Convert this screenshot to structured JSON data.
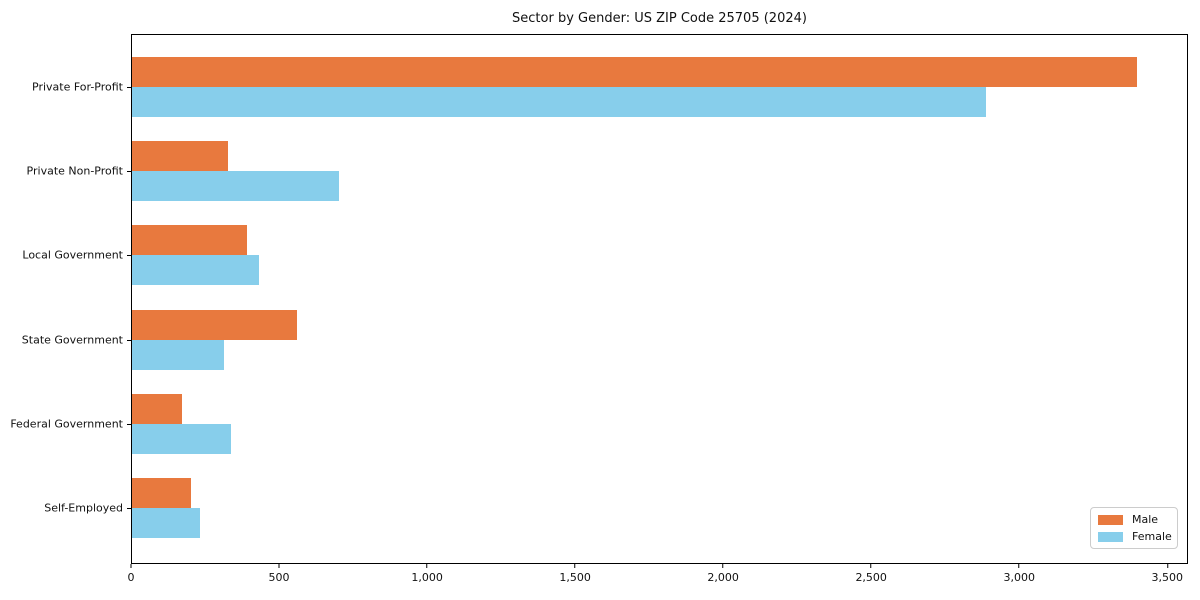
{
  "chart_data": {
    "type": "bar",
    "orientation": "horizontal",
    "title": "Sector by Gender: US ZIP Code 25705 (2024)",
    "categories": [
      "Private For-Profit",
      "Private Non-Profit",
      "Local Government",
      "State Government",
      "Federal Government",
      "Self-Employed"
    ],
    "series": [
      {
        "name": "Male",
        "color": "#E8793E",
        "values": [
          3400,
          325,
          390,
          560,
          170,
          200
        ]
      },
      {
        "name": "Female",
        "color": "#87CEEB",
        "values": [
          2890,
          700,
          430,
          310,
          335,
          230
        ]
      }
    ],
    "xlabel": "",
    "ylabel": "",
    "xlim": [
      0,
      3570
    ],
    "xticks": [
      0,
      500,
      1000,
      1500,
      2000,
      2500,
      3000,
      3500
    ],
    "xtick_labels": [
      "0",
      "500",
      "1,000",
      "1,500",
      "2,000",
      "2,500",
      "3,000",
      "3,500"
    ],
    "grid": false,
    "legend": {
      "position": "lower right",
      "entries": [
        {
          "label": "Male",
          "color": "#E8793E"
        },
        {
          "label": "Female",
          "color": "#87CEEB"
        }
      ]
    }
  }
}
